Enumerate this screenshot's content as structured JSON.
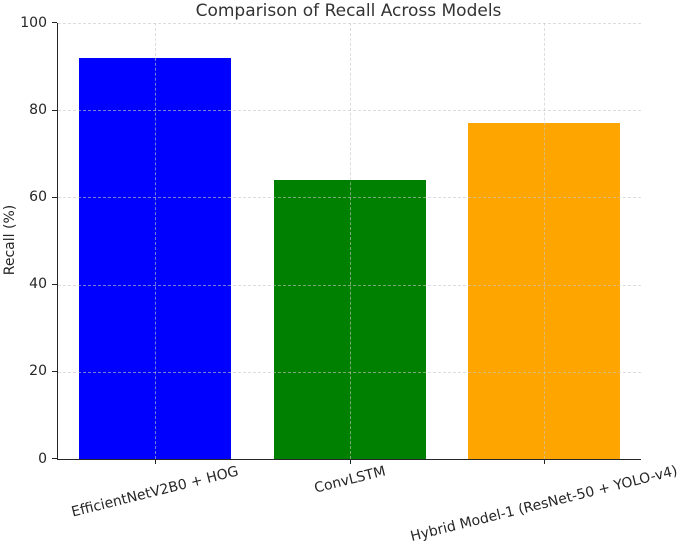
{
  "chart_data": {
    "type": "bar",
    "title": "Comparison of Recall Across Models",
    "xlabel": "",
    "ylabel": "Recall (%)",
    "categories": [
      "EfficientNetV2B0 + HOG",
      "ConvLSTM",
      "Hybrid Model-1 (ResNet-50 + YOLO-v4)"
    ],
    "values": [
      92,
      64,
      77
    ],
    "bar_colors": [
      "#0000ff",
      "#008000",
      "#ffa500"
    ],
    "ylim": [
      0,
      100
    ],
    "yticks": [
      0,
      20,
      40,
      60,
      80,
      100
    ],
    "grid": "dashed gridlines on both axes, drawn above bars",
    "legend": "none",
    "xtick_rotation_deg": 14
  }
}
